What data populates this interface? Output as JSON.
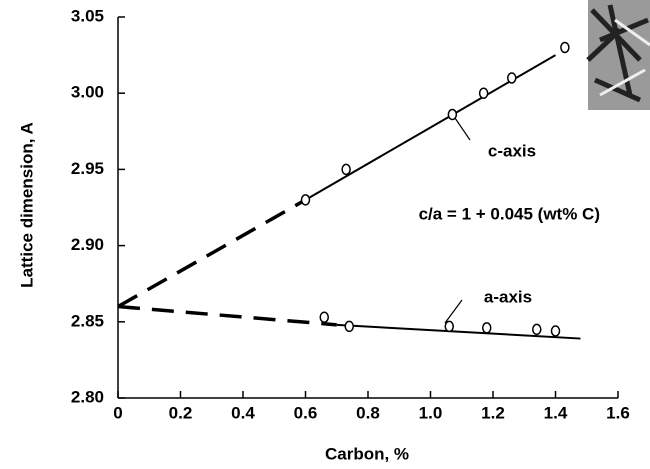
{
  "chart_data": {
    "type": "scatter",
    "x_label": "Carbon, %",
    "y_label": "Lattice dimension, A",
    "annotation": "c/a = 1 + 0.045 (wt% C)",
    "xlim": [
      0,
      1.6
    ],
    "ylim": [
      2.8,
      3.05
    ],
    "xticks": [
      0,
      0.2,
      0.4,
      0.6,
      0.8,
      {
        "value": 1,
        "label": "1.0"
      },
      1.2,
      1.4,
      1.6
    ],
    "yticks": [
      {
        "value": 2.8,
        "label": "2.80"
      },
      2.85,
      {
        "value": 2.9,
        "label": "2.90"
      },
      2.95,
      {
        "value": 3,
        "label": "3.00"
      },
      3.05
    ],
    "color": "#000000",
    "series": [
      {
        "name": "c-axis",
        "x": [
          0.6,
          0.73,
          1.07,
          1.17,
          1.26,
          1.43
        ],
        "values": [
          2.93,
          2.95,
          2.986,
          3.0,
          3.01,
          3.03
        ]
      },
      {
        "name": "a-axis",
        "x": [
          0.66,
          0.74,
          1.06,
          1.18,
          1.34,
          1.4
        ],
        "values": [
          2.853,
          2.847,
          2.847,
          2.846,
          2.845,
          2.844
        ]
      }
    ],
    "fits": [
      {
        "x": [
          0.6,
          1.4
        ],
        "values": [
          2.93,
          3.025
        ],
        "dashed": false
      },
      {
        "x": [
          0,
          0.6
        ],
        "values": [
          2.86,
          2.93
        ],
        "dashed": true
      },
      {
        "x": [
          0.7,
          1.48
        ],
        "values": [
          2.848,
          2.839
        ],
        "dashed": false
      },
      {
        "x": [
          0,
          0.7
        ],
        "values": [
          2.86,
          2.848
        ],
        "dashed": true
      }
    ]
  }
}
